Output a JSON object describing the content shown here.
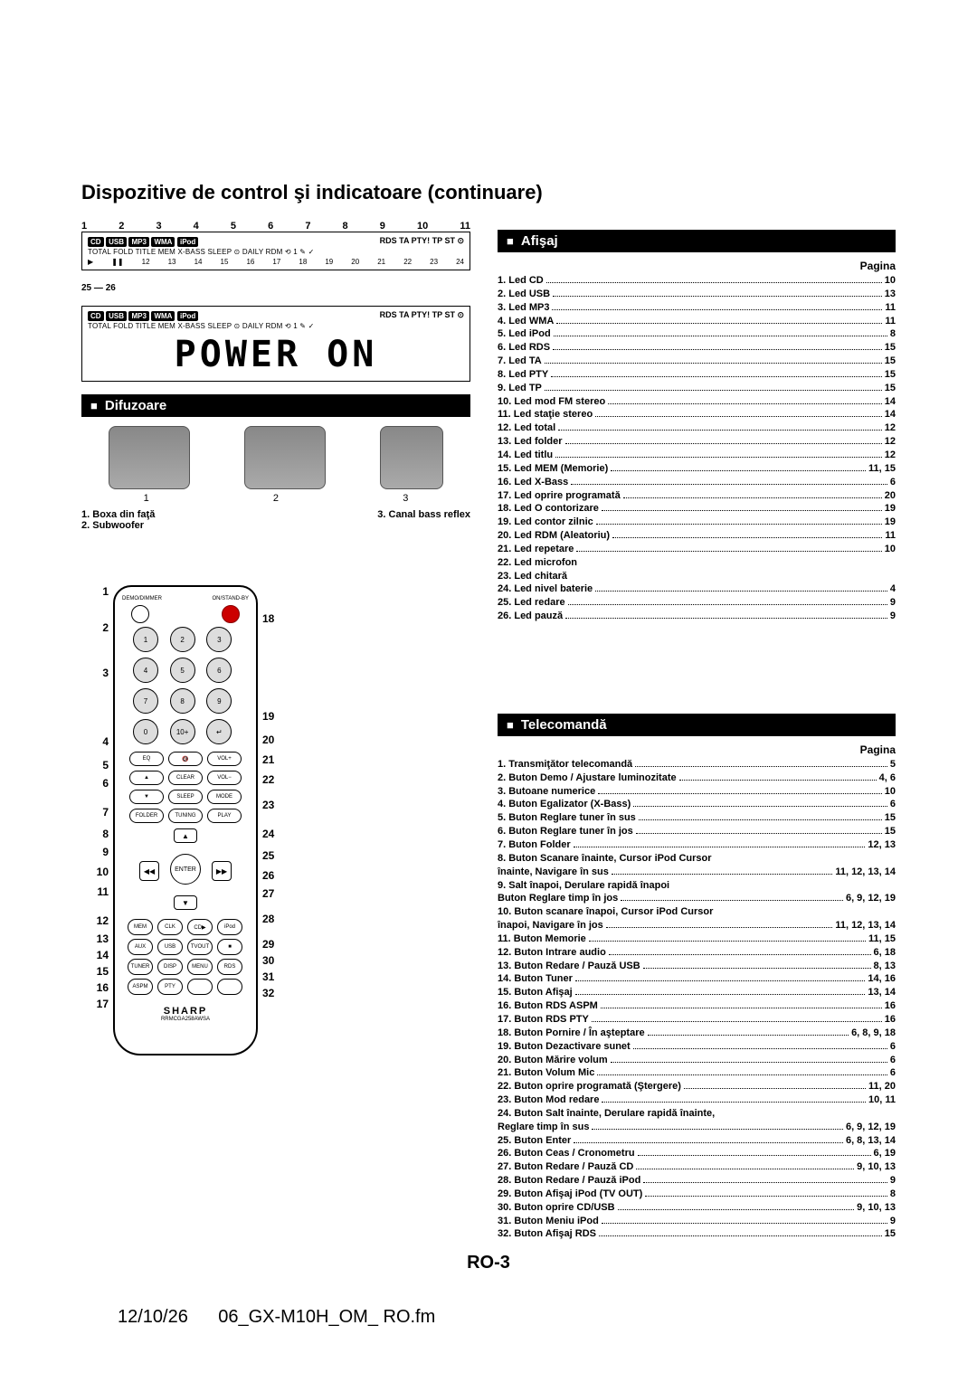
{
  "page_title": "Dispozitive de control şi indicatoare (continuare)",
  "page_number": "RO-3",
  "footer_date": "12/10/26",
  "footer_file": "06_GX-M10H_OM_ RO.fm",
  "display": {
    "callouts_top": [
      "1",
      "2",
      "3",
      "4",
      "5",
      "6",
      "7",
      "8",
      "9",
      "10",
      "11"
    ],
    "chips": [
      "CD",
      "USB",
      "MP3",
      "WMA",
      "iPod"
    ],
    "row1_right": "RDS TA PTY! TP ST ⊙",
    "row2": "TOTAL FOLD TITLE MEM X-BASS SLEEP ⊙ DAILY RDM ⟲ 1 ✎ ✓",
    "callouts_bottom": [
      "12",
      "13",
      "14",
      "15",
      "16",
      "17",
      "18",
      "19",
      "20",
      "21",
      "22",
      "23",
      "24"
    ],
    "callouts_side": [
      "25",
      "26"
    ],
    "segment_text": "POWER  ON"
  },
  "speakers": {
    "header": "Difuzoare",
    "nums": [
      "1",
      "2",
      "3"
    ],
    "label1_num": "1.",
    "label1": "Boxa din faţă",
    "label2_num": "2.",
    "label2": "Subwoofer",
    "label3_num": "3.",
    "label3": "Canal bass reflex"
  },
  "afisaj": {
    "header": "Afişaj",
    "pagina": "Pagina",
    "items": [
      {
        "n": "1.",
        "t": "Led CD",
        "p": "10"
      },
      {
        "n": "2.",
        "t": "Led USB",
        "p": "13"
      },
      {
        "n": "3.",
        "t": "Led MP3",
        "p": "11"
      },
      {
        "n": "4.",
        "t": "Led WMA",
        "p": "11"
      },
      {
        "n": "5.",
        "t": "Led iPod",
        "p": "8"
      },
      {
        "n": "6.",
        "t": "Led RDS",
        "p": "15"
      },
      {
        "n": "7.",
        "t": "Led TA",
        "p": "15"
      },
      {
        "n": "8.",
        "t": "Led PTY",
        "p": "15"
      },
      {
        "n": "9.",
        "t": "Led TP",
        "p": "15"
      },
      {
        "n": "10.",
        "t": "Led mod FM stereo",
        "p": "14"
      },
      {
        "n": "11.",
        "t": "Led staţie stereo",
        "p": "14"
      },
      {
        "n": "12.",
        "t": "Led total",
        "p": "12"
      },
      {
        "n": "13.",
        "t": "Led folder",
        "p": "12"
      },
      {
        "n": "14.",
        "t": "Led titlu",
        "p": "12"
      },
      {
        "n": "15.",
        "t": "Led MEM (Memorie)",
        "p": "11, 15"
      },
      {
        "n": "16.",
        "t": "Led X-Bass",
        "p": "6"
      },
      {
        "n": "17.",
        "t": "Led oprire programată",
        "p": "20"
      },
      {
        "n": "18.",
        "t": "Led O contorizare",
        "p": "19"
      },
      {
        "n": "19.",
        "t": "Led contor zilnic",
        "p": "19"
      },
      {
        "n": "20.",
        "t": "Led RDM (Aleatoriu)",
        "p": "11"
      },
      {
        "n": "21.",
        "t": "Led repetare",
        "p": "10"
      },
      {
        "n": "22.",
        "t": "Led microfon",
        "p": ""
      },
      {
        "n": "23.",
        "t": "Led chitară",
        "p": ""
      },
      {
        "n": "24.",
        "t": "Led nivel baterie",
        "p": "4"
      },
      {
        "n": "25.",
        "t": "Led redare",
        "p": "9"
      },
      {
        "n": "26.",
        "t": "Led pauză",
        "p": "9"
      }
    ]
  },
  "remote": {
    "header": "Telecomandă",
    "pagina": "Pagina",
    "top_left_label": "DEMO/DIMMER",
    "top_right_label": "ON/STAND-BY",
    "brand": "SHARP",
    "model": "RRMCGA258AWSA",
    "callouts_left": [
      {
        "n": "1",
        "gap": 0
      },
      {
        "n": "2",
        "gap": 26
      },
      {
        "n": "3",
        "gap": 36
      },
      {
        "n": "4",
        "gap": 62
      },
      {
        "n": "5",
        "gap": 12
      },
      {
        "n": "6",
        "gap": 6
      },
      {
        "n": "7",
        "gap": 18
      },
      {
        "n": "8",
        "gap": 10
      },
      {
        "n": "9",
        "gap": 6
      },
      {
        "n": "10",
        "gap": 8
      },
      {
        "n": "11",
        "gap": 8
      },
      {
        "n": "12",
        "gap": 18
      },
      {
        "n": "13",
        "gap": 6
      },
      {
        "n": "14",
        "gap": 4
      },
      {
        "n": "15",
        "gap": 4
      },
      {
        "n": "16",
        "gap": 4
      },
      {
        "n": "17",
        "gap": 4
      }
    ],
    "callouts_right": [
      {
        "n": "18",
        "gap": 30
      },
      {
        "n": "19",
        "gap": 94
      },
      {
        "n": "20",
        "gap": 12
      },
      {
        "n": "21",
        "gap": 8
      },
      {
        "n": "22",
        "gap": 8
      },
      {
        "n": "23",
        "gap": 14
      },
      {
        "n": "24",
        "gap": 18
      },
      {
        "n": "25",
        "gap": 10
      },
      {
        "n": "26",
        "gap": 8
      },
      {
        "n": "27",
        "gap": 6
      },
      {
        "n": "28",
        "gap": 14
      },
      {
        "n": "29",
        "gap": 14
      },
      {
        "n": "30",
        "gap": 4
      },
      {
        "n": "31",
        "gap": 4
      },
      {
        "n": "32",
        "gap": 4
      }
    ],
    "items": [
      {
        "n": "1.",
        "t": "Transmiţător telecomandă",
        "p": "5"
      },
      {
        "n": "2.",
        "t": "Buton Demo / Ajustare luminozitate",
        "p": "4, 6"
      },
      {
        "n": "3.",
        "t": "Butoane numerice",
        "p": "10"
      },
      {
        "n": "4.",
        "t": "Buton Egalizator (X-Bass)",
        "p": "6"
      },
      {
        "n": "5.",
        "t": "Buton Reglare tuner în sus",
        "p": "15"
      },
      {
        "n": "6.",
        "t": "Buton Reglare tuner în jos",
        "p": "15"
      },
      {
        "n": "7.",
        "t": "Buton Folder",
        "p": "12, 13"
      },
      {
        "n": "8.",
        "t": "Buton Scanare înainte, Cursor iPod Cursor",
        "p": ""
      },
      {
        "n": "",
        "t": "înainte, Navigare în sus",
        "p": "11, 12, 13, 14"
      },
      {
        "n": "9.",
        "t": "Salt înapoi, Derulare rapidă înapoi",
        "p": ""
      },
      {
        "n": "",
        "t": "Buton Reglare timp în jos",
        "p": "6, 9, 12, 19"
      },
      {
        "n": "10.",
        "t": "Buton scanare înapoi, Cursor iPod Cursor",
        "p": ""
      },
      {
        "n": "",
        "t": "înapoi, Navigare în jos",
        "p": "11, 12, 13, 14"
      },
      {
        "n": "11.",
        "t": "Buton Memorie",
        "p": "11, 15"
      },
      {
        "n": "12.",
        "t": "Buton Intrare audio",
        "p": "6, 18"
      },
      {
        "n": "13.",
        "t": "Buton Redare / Pauză USB",
        "p": "8, 13"
      },
      {
        "n": "14.",
        "t": "Buton Tuner",
        "p": "14, 16"
      },
      {
        "n": "15.",
        "t": "Buton Afişaj",
        "p": "13, 14"
      },
      {
        "n": "16.",
        "t": "Buton RDS ASPM",
        "p": "16"
      },
      {
        "n": "17.",
        "t": "Buton RDS PTY",
        "p": "16"
      },
      {
        "n": "18.",
        "t": "Buton Pornire / În aşteptare",
        "p": "6, 8, 9, 18"
      },
      {
        "n": "19.",
        "t": "Buton Dezactivare sunet",
        "p": "6"
      },
      {
        "n": "20.",
        "t": "Buton Mărire volum",
        "p": "6"
      },
      {
        "n": "21.",
        "t": "Buton Volum Mic",
        "p": "6"
      },
      {
        "n": "22.",
        "t": "Buton oprire programată (Ştergere)",
        "p": "11, 20"
      },
      {
        "n": "23.",
        "t": "Buton Mod redare",
        "p": "10, 11"
      },
      {
        "n": "24.",
        "t": "Buton Salt înainte, Derulare rapidă înainte,",
        "p": ""
      },
      {
        "n": "",
        "t": "Reglare timp în sus",
        "p": "6, 9, 12, 19"
      },
      {
        "n": "25.",
        "t": "Buton Enter",
        "p": "6, 8, 13, 14"
      },
      {
        "n": "26.",
        "t": "Buton Ceas / Cronometru",
        "p": "6, 19"
      },
      {
        "n": "27.",
        "t": "Buton Redare / Pauză CD",
        "p": "9, 10, 13"
      },
      {
        "n": "28.",
        "t": "Buton Redare / Pauză iPod",
        "p": "9"
      },
      {
        "n": "29.",
        "t": "Buton Afişaj iPod (TV OUT)",
        "p": "8"
      },
      {
        "n": "30.",
        "t": "Buton oprire CD/USB",
        "p": "9, 10, 13"
      },
      {
        "n": "31.",
        "t": "Buton Meniu iPod",
        "p": "9"
      },
      {
        "n": "32.",
        "t": "Buton Afişaj RDS",
        "p": "15"
      }
    ]
  }
}
